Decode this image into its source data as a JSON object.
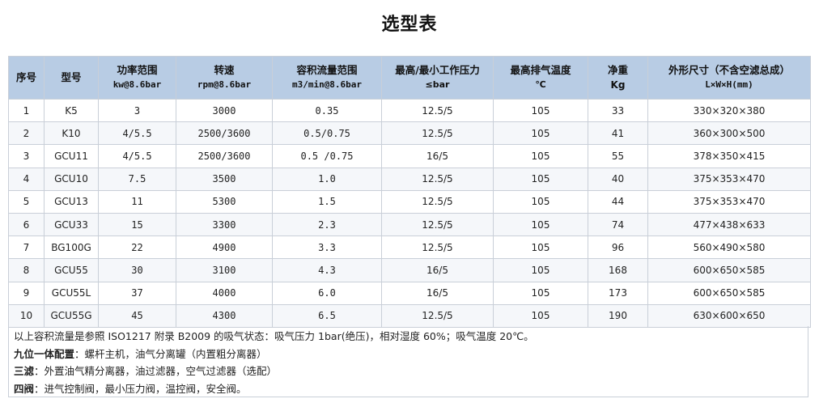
{
  "title": "选型表",
  "headers": [
    {
      "main": "序号",
      "sub": ""
    },
    {
      "main": "型号",
      "sub": ""
    },
    {
      "main": "功率范围",
      "sub": "kw@8.6bar"
    },
    {
      "main": "转速",
      "sub": "rpm@8.6bar"
    },
    {
      "main": "容积流量范围",
      "sub": "m3/min@8.6bar"
    },
    {
      "main": "最高/最小工作压力",
      "sub": "≤bar"
    },
    {
      "main": "最高排气温度",
      "sub": "℃"
    },
    {
      "main": "净重",
      "sub": "Kg"
    },
    {
      "main": "外形尺寸（不含空滤总成）",
      "sub": "L×W×H(mm)"
    }
  ],
  "rows": [
    [
      "1",
      "K5",
      "3",
      "3000",
      "0.35",
      "12.5/5",
      "105",
      "33",
      "330×320×380"
    ],
    [
      "2",
      "K10",
      "4/5.5",
      "2500/3600",
      "0.5/0.75",
      "12.5/5",
      "105",
      "41",
      "360×300×500"
    ],
    [
      "3",
      "GCU11",
      "4/5.5",
      "2500/3600",
      "0.5 /0.75",
      "16/5",
      "105",
      "55",
      "378×350×415"
    ],
    [
      "4",
      "GCU10",
      "7.5",
      "3500",
      "1.0",
      "12.5/5",
      "105",
      "40",
      "375×353×470"
    ],
    [
      "5",
      "GCU13",
      "11",
      "5300",
      "1.5",
      "12.5/5",
      "105",
      "44",
      "375×353×470"
    ],
    [
      "6",
      "GCU33",
      "15",
      "3300",
      "2.3",
      "12.5/5",
      "105",
      "74",
      "477×438×633"
    ],
    [
      "7",
      "BG100G",
      "22",
      "4900",
      "3.3",
      "12.5/5",
      "105",
      "96",
      "560×490×580"
    ],
    [
      "8",
      "GCU55",
      "30",
      "3100",
      "4.3",
      "16/5",
      "105",
      "168",
      "600×650×585"
    ],
    [
      "9",
      "GCU55L",
      "37",
      "4000",
      "6.0",
      "16/5",
      "105",
      "173",
      "600×650×585"
    ],
    [
      "10",
      "GCU55G",
      "45",
      "4300",
      "6.5",
      "12.5/5",
      "105",
      "190",
      "630×600×650"
    ]
  ],
  "notes": {
    "line1": "以上容积流量是参照 ISO1217 附录 B2009 的吸气状态：吸气压力 1bar(绝压)，相对湿度 60%；吸气温度 20℃。",
    "line2_label": "九位一体配置",
    "line2_text": "：螺杆主机，油气分离罐（内置粗分离器）",
    "line3_label": "三滤",
    "line3_text": "：外置油气精分离器，油过滤器，空气过滤器（选配）",
    "line4_label": "四阀",
    "line4_text": "：进气控制阀，最小压力阀，温控阀，安全阀。"
  }
}
